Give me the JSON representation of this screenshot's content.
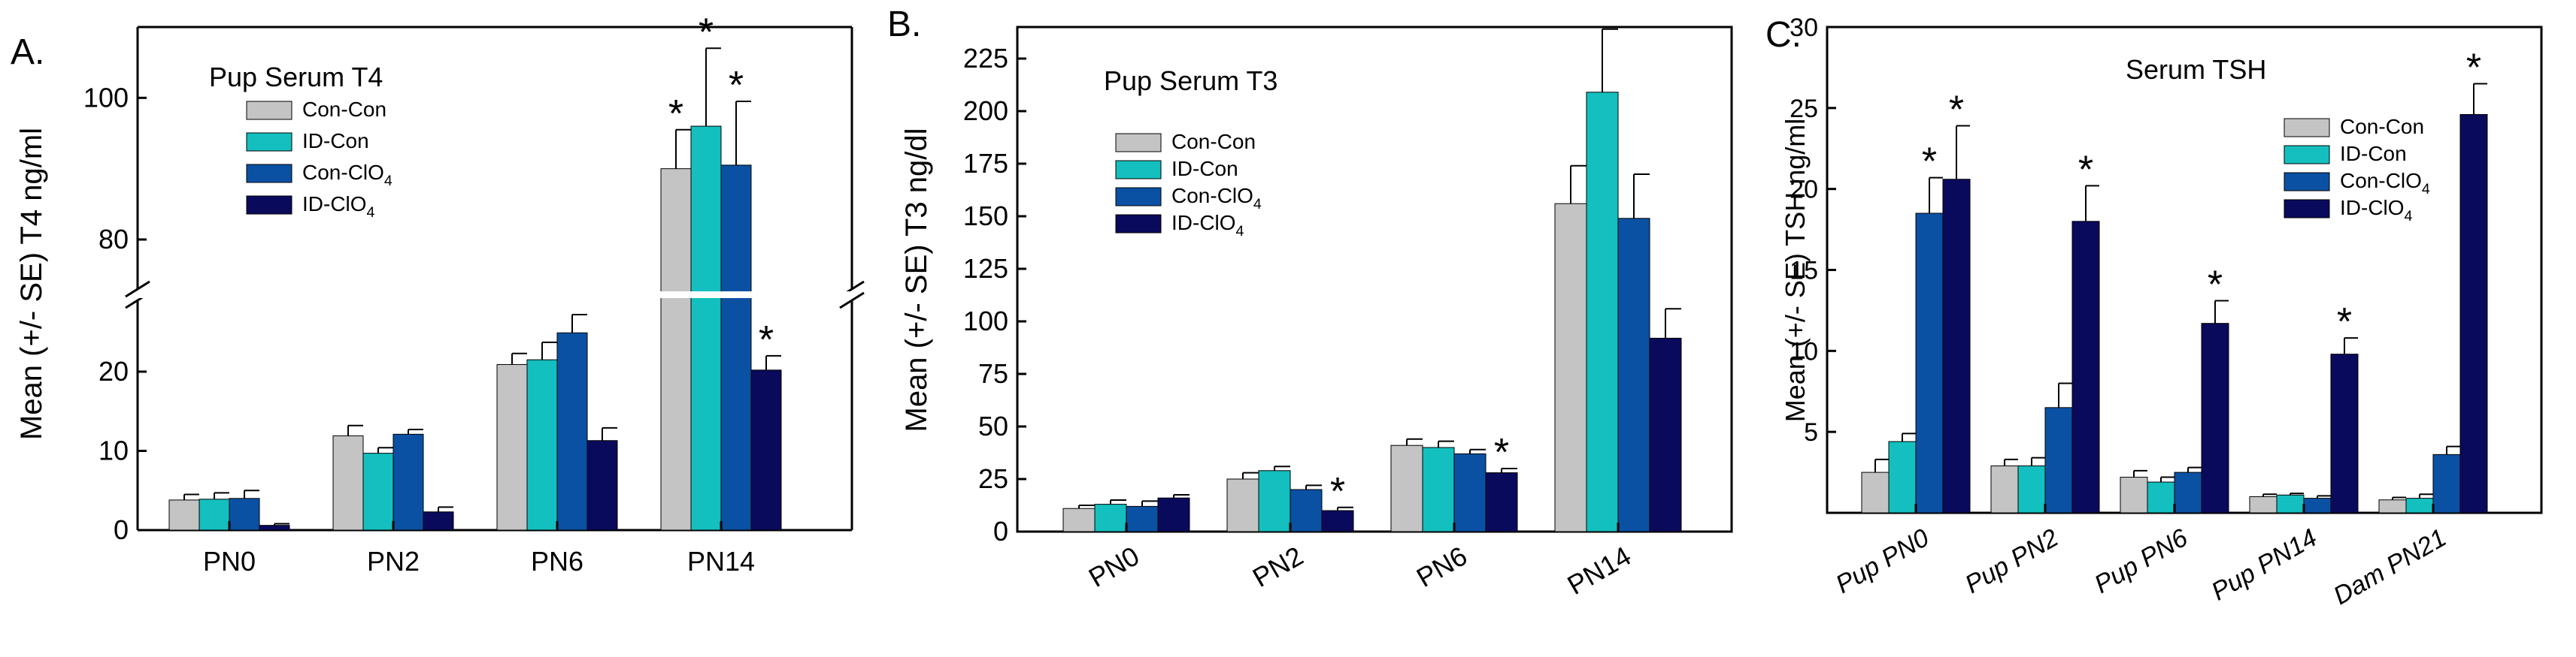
{
  "colors": {
    "con_con": "#c4c4c4",
    "id_con": "#14bfbf",
    "con_clo4": "#0b51a3",
    "id_clo4": "#0a0a5c",
    "axis": "#000000"
  },
  "chart_data": [
    {
      "type": "bar",
      "panel_label": "A.",
      "title": "Pup Serum T4",
      "ylabel": "Mean (+/- SE) T4 ng/ml",
      "xlabel": "",
      "categories": [
        "PN0",
        "PN2",
        "PN6",
        "PN14"
      ],
      "y_axis_break": {
        "lower_range": [
          0,
          29
        ],
        "upper_range": [
          73,
          110
        ]
      },
      "yticks": [
        0,
        10,
        20,
        80,
        100
      ],
      "legend": {
        "placement": "upper-left",
        "entries": [
          "Con-Con",
          "ID-Con",
          "Con-ClO",
          "ID-ClO"
        ],
        "subscripts": [
          "",
          "",
          "4",
          "4"
        ]
      },
      "series": [
        {
          "name": "Con-Con",
          "values": [
            3.8,
            11.9,
            20.9,
            90.0
          ],
          "errors": [
            0.7,
            1.3,
            1.4,
            5.5
          ]
        },
        {
          "name": "ID-Con",
          "values": [
            3.9,
            9.7,
            21.5,
            96.0
          ],
          "errors": [
            0.8,
            0.7,
            2.2,
            11.0
          ]
        },
        {
          "name": "Con-ClO4",
          "values": [
            4.0,
            12.1,
            24.9,
            90.5
          ],
          "errors": [
            1.0,
            0.6,
            2.3,
            9.0
          ]
        },
        {
          "name": "ID-ClO4",
          "values": [
            0.6,
            2.3,
            11.3,
            20.2
          ],
          "errors": [
            0.2,
            0.6,
            1.6,
            1.8
          ]
        }
      ],
      "significant": [
        [
          false,
          false,
          false,
          true
        ],
        [
          false,
          false,
          false,
          true
        ],
        [
          false,
          false,
          false,
          true
        ],
        [
          false,
          false,
          false,
          true
        ]
      ],
      "significance_marker": "*"
    },
    {
      "type": "bar",
      "panel_label": "B.",
      "title": "Pup Serum T3",
      "ylabel": "Mean (+/- SE) T3 ng/dl",
      "xlabel": "",
      "categories": [
        "PN0",
        "PN2",
        "PN6",
        "PN14"
      ],
      "ylim": [
        0,
        240
      ],
      "yticks": [
        0,
        25,
        50,
        75,
        100,
        125,
        150,
        175,
        200,
        225
      ],
      "legend": {
        "placement": "upper-left",
        "entries": [
          "Con-Con",
          "ID-Con",
          "Con-ClO",
          "ID-ClO"
        ],
        "subscripts": [
          "",
          "",
          "4",
          "4"
        ]
      },
      "series": [
        {
          "name": "Con-Con",
          "values": [
            11,
            25,
            41,
            156
          ],
          "errors": [
            1.5,
            3,
            3,
            18
          ]
        },
        {
          "name": "ID-Con",
          "values": [
            13,
            29,
            40,
            209
          ],
          "errors": [
            2,
            2,
            3,
            30
          ]
        },
        {
          "name": "Con-ClO4",
          "values": [
            12,
            20,
            37,
            149
          ],
          "errors": [
            2.5,
            2,
            2,
            21
          ]
        },
        {
          "name": "ID-ClO4",
          "values": [
            16,
            10,
            28,
            92
          ],
          "errors": [
            1.5,
            1.5,
            2,
            14
          ]
        }
      ],
      "significant": [
        [
          false,
          false,
          false,
          false
        ],
        [
          false,
          false,
          false,
          false
        ],
        [
          false,
          false,
          false,
          false
        ],
        [
          false,
          true,
          true,
          false
        ]
      ],
      "significance_marker": "*"
    },
    {
      "type": "bar",
      "panel_label": "C.",
      "title": "Serum TSH",
      "ylabel": "Mean (+/- SE) TSH ng/ml",
      "xlabel": "",
      "categories": [
        "Pup PN0",
        "Pup PN2",
        "Pup PN6",
        "Pup PN14",
        "Dam PN21"
      ],
      "ylim": [
        0,
        30
      ],
      "yticks": [
        5,
        10,
        15,
        20,
        25,
        30
      ],
      "legend": {
        "placement": "upper-right",
        "entries": [
          "Con-Con",
          "ID-Con",
          "Con-ClO",
          "ID-ClO"
        ],
        "subscripts": [
          "",
          "",
          "4",
          "4"
        ]
      },
      "series": [
        {
          "name": "Con-Con",
          "values": [
            2.5,
            2.9,
            2.2,
            1.0,
            0.8
          ],
          "errors": [
            0.8,
            0.4,
            0.4,
            0.15,
            0.15
          ]
        },
        {
          "name": "ID-Con",
          "values": [
            4.4,
            2.9,
            1.9,
            1.1,
            0.9
          ],
          "errors": [
            0.5,
            0.5,
            0.3,
            0.1,
            0.25
          ]
        },
        {
          "name": "Con-ClO4",
          "values": [
            18.5,
            6.5,
            2.5,
            0.9,
            3.6
          ],
          "errors": [
            2.2,
            1.5,
            0.3,
            0.15,
            0.5
          ]
        },
        {
          "name": "ID-ClO4",
          "values": [
            20.6,
            18.0,
            11.7,
            9.8,
            24.6
          ],
          "errors": [
            3.3,
            2.2,
            1.4,
            1.0,
            1.9
          ]
        }
      ],
      "significant": [
        [
          false,
          false,
          false,
          false,
          false
        ],
        [
          false,
          false,
          false,
          false,
          false
        ],
        [
          true,
          false,
          false,
          false,
          false
        ],
        [
          true,
          true,
          true,
          true,
          true
        ]
      ],
      "significance_marker": "*"
    }
  ]
}
